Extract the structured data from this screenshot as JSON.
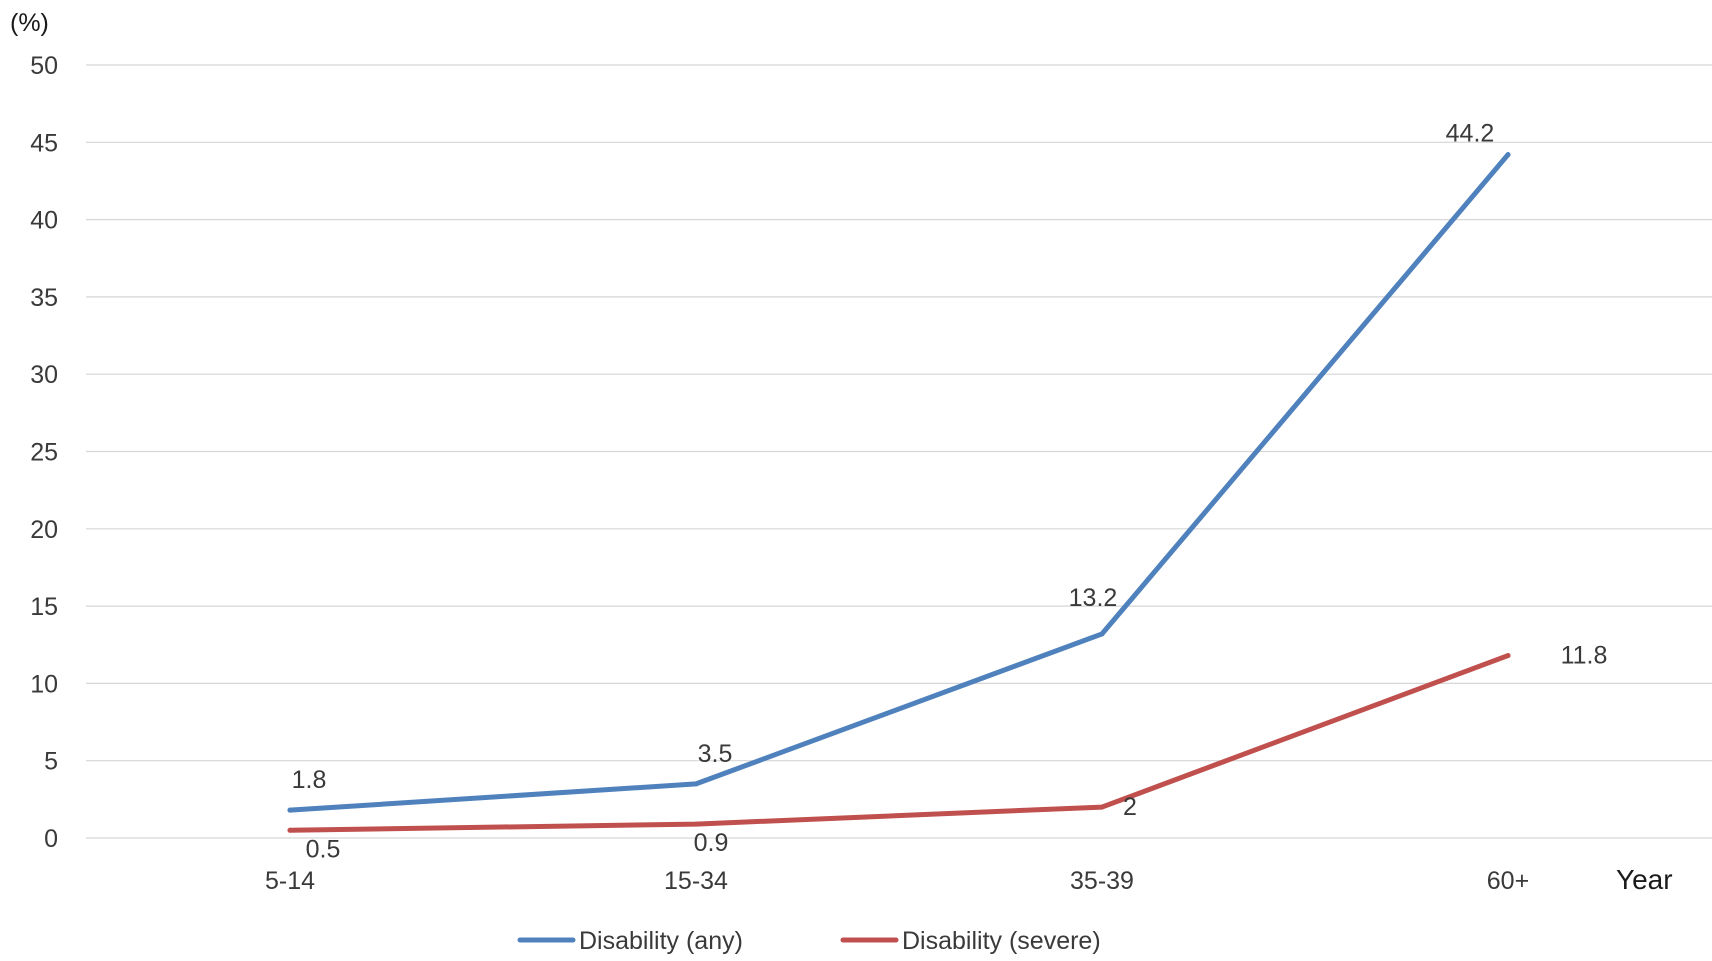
{
  "chart_data": {
    "type": "line",
    "categories": [
      "5-14",
      "15-34",
      "35-39",
      "60+"
    ],
    "series": [
      {
        "name": "Disability (any)",
        "values": [
          1.8,
          3.5,
          13.2,
          44.2
        ],
        "color": "#4F81BD"
      },
      {
        "name": "Disability (severe)",
        "values": [
          0.5,
          0.9,
          2,
          11.8
        ],
        "color": "#C0504D"
      }
    ],
    "y_unit_label": "(%)",
    "xlabel": "Year",
    "ylim": [
      0,
      50
    ],
    "y_ticks": [
      0,
      5,
      10,
      15,
      20,
      25,
      30,
      35,
      40,
      45,
      50
    ],
    "grid": true,
    "legend_position": "bottom"
  }
}
